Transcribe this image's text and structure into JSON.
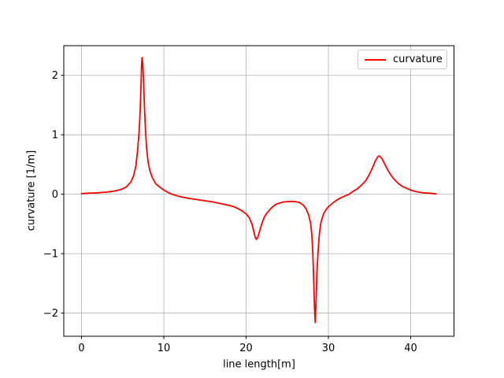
{
  "chart_data": {
    "type": "line",
    "title": "",
    "xlabel": "line length[m]",
    "ylabel": "curvature [1/m]",
    "x_ticks": [
      0,
      10,
      20,
      30,
      40
    ],
    "y_ticks": [
      -2,
      -1,
      0,
      1,
      2
    ],
    "xlim": [
      -2.16,
      45.26
    ],
    "ylim": [
      -2.39,
      2.5
    ],
    "grid": true,
    "grid_color": "#b0b0b0",
    "spine_color": "#000000",
    "background_color": "#ffffff",
    "legend": {
      "position": "upper right",
      "entries": [
        {
          "label": "curvature",
          "color": "#ff0000"
        }
      ]
    },
    "series": [
      {
        "name": "curvature",
        "color": "#ff0000",
        "line_width": 1.8,
        "points": [
          [
            0,
            0.01
          ],
          [
            0.5,
            0.015
          ],
          [
            1,
            0.02
          ],
          [
            1.5,
            0.02
          ],
          [
            2,
            0.025
          ],
          [
            2.5,
            0.03
          ],
          [
            3,
            0.035
          ],
          [
            3.5,
            0.045
          ],
          [
            4,
            0.055
          ],
          [
            4.5,
            0.07
          ],
          [
            5,
            0.09
          ],
          [
            5.5,
            0.13
          ],
          [
            6,
            0.21
          ],
          [
            6.3,
            0.3
          ],
          [
            6.6,
            0.47
          ],
          [
            6.8,
            0.72
          ],
          [
            7,
            1.06
          ],
          [
            7.1,
            1.35
          ],
          [
            7.2,
            1.72
          ],
          [
            7.3,
            2.18
          ],
          [
            7.35,
            2.3
          ],
          [
            7.45,
            2.18
          ],
          [
            7.55,
            1.82
          ],
          [
            7.65,
            1.45
          ],
          [
            7.75,
            1.12
          ],
          [
            7.9,
            0.78
          ],
          [
            8.1,
            0.53
          ],
          [
            8.3,
            0.4
          ],
          [
            8.6,
            0.28
          ],
          [
            9,
            0.18
          ],
          [
            9.5,
            0.12
          ],
          [
            10,
            0.07
          ],
          [
            10.5,
            0.03
          ],
          [
            11,
            0.0
          ],
          [
            11.5,
            -0.02
          ],
          [
            12,
            -0.04
          ],
          [
            13,
            -0.07
          ],
          [
            14,
            -0.09
          ],
          [
            15,
            -0.11
          ],
          [
            16,
            -0.13
          ],
          [
            17,
            -0.16
          ],
          [
            18,
            -0.19
          ],
          [
            18.5,
            -0.21
          ],
          [
            19,
            -0.24
          ],
          [
            19.5,
            -0.28
          ],
          [
            20,
            -0.33
          ],
          [
            20.4,
            -0.4
          ],
          [
            20.7,
            -0.5
          ],
          [
            20.95,
            -0.64
          ],
          [
            21.1,
            -0.72
          ],
          [
            21.25,
            -0.76
          ],
          [
            21.4,
            -0.73
          ],
          [
            21.6,
            -0.64
          ],
          [
            21.9,
            -0.5
          ],
          [
            22.2,
            -0.39
          ],
          [
            22.5,
            -0.32
          ],
          [
            23,
            -0.24
          ],
          [
            23.5,
            -0.18
          ],
          [
            24,
            -0.15
          ],
          [
            24.5,
            -0.13
          ],
          [
            25,
            -0.125
          ],
          [
            25.5,
            -0.12
          ],
          [
            26,
            -0.125
          ],
          [
            26.5,
            -0.14
          ],
          [
            27,
            -0.19
          ],
          [
            27.3,
            -0.25
          ],
          [
            27.6,
            -0.35
          ],
          [
            27.85,
            -0.5
          ],
          [
            28,
            -0.7
          ],
          [
            28.1,
            -0.98
          ],
          [
            28.2,
            -1.38
          ],
          [
            28.3,
            -1.88
          ],
          [
            28.4,
            -2.16
          ],
          [
            28.5,
            -1.8
          ],
          [
            28.6,
            -1.32
          ],
          [
            28.75,
            -0.95
          ],
          [
            28.9,
            -0.66
          ],
          [
            29.1,
            -0.47
          ],
          [
            29.4,
            -0.33
          ],
          [
            29.7,
            -0.26
          ],
          [
            30,
            -0.21
          ],
          [
            30.5,
            -0.15
          ],
          [
            31,
            -0.1
          ],
          [
            31.5,
            -0.06
          ],
          [
            32,
            -0.03
          ],
          [
            32.5,
            0.0
          ],
          [
            33,
            0.05
          ],
          [
            33.5,
            0.09
          ],
          [
            34,
            0.15
          ],
          [
            34.5,
            0.22
          ],
          [
            35,
            0.34
          ],
          [
            35.4,
            0.46
          ],
          [
            35.7,
            0.56
          ],
          [
            36,
            0.63
          ],
          [
            36.2,
            0.645
          ],
          [
            36.5,
            0.6
          ],
          [
            36.8,
            0.52
          ],
          [
            37.2,
            0.41
          ],
          [
            37.6,
            0.32
          ],
          [
            38,
            0.25
          ],
          [
            38.5,
            0.18
          ],
          [
            39,
            0.13
          ],
          [
            39.5,
            0.1
          ],
          [
            40,
            0.07
          ],
          [
            40.5,
            0.05
          ],
          [
            41,
            0.035
          ],
          [
            41.5,
            0.025
          ],
          [
            42,
            0.02
          ],
          [
            42.5,
            0.015
          ],
          [
            43.1,
            0.005
          ]
        ]
      }
    ]
  }
}
